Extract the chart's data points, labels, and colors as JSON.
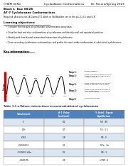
{
  "title_left": "CHEM 3350",
  "title_center": "Cycloalkane Conformations",
  "title_right": "Dr. Rivera/Spring 2023",
  "block": "Block 1  Due 08/28",
  "activity_title": "A7-7 Cyclohexane Conformations",
  "required": "Required: A access kit, A Dunno LT-1 Work or Skillbuilder see in the p1-2, 4-5 and 6-8",
  "learning_objectives_title": "Learning objectives:",
  "learning_objectives": [
    "Compare the energies of cyclohexane conformations using steps",
    "Draw the boat and chair conformations of cyclohexane and identify axial and equatorial positions",
    "Identify and draw di-axial interactions/interactions of cyclohexane",
    "Draw secondary cyclohexane conformations, and predict the most stable conformation in substituted cyclohexanes"
  ],
  "key_information": "Key information:",
  "table_title": "Table 1.1 a-Values: interactions in monosubstituted cyclohexanes",
  "table_rows": [
    [
      "-F",
      "0.2",
      "60 : 40"
    ],
    [
      "-OH",
      "0.7",
      "55 : 1 1"
    ],
    [
      "-CH3",
      "1.8",
      "95 : 5"
    ],
    [
      "-CH(CH3)2",
      "2.1",
      "97a : 3a"
    ],
    [
      "-C(CH3)3 t-Bu",
      "5.5",
      "99 : 1"
    ],
    [
      "-C6H5 Ph",
      "2.9",
      ">999 : 1"
    ]
  ],
  "energy_label": "Energy",
  "bg_color": "#ffffff",
  "text_color": "#000000",
  "header_color": "#4f81bd",
  "row_colors": [
    "#dce6f1",
    "#ffffff"
  ],
  "red_bar_color": "#cc0000",
  "table_title_color": "#17375e",
  "divider_color": "#aaaaaa"
}
